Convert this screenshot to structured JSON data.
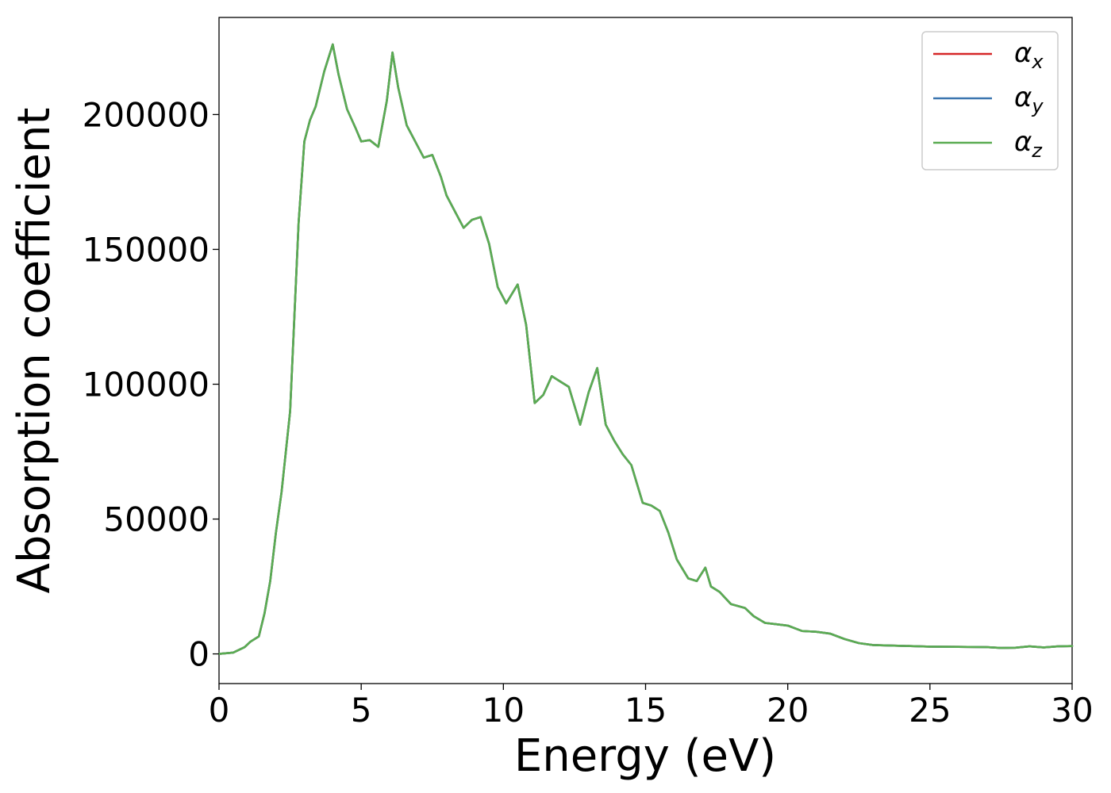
{
  "chart_data": {
    "type": "line",
    "xlabel": "Energy (eV)",
    "ylabel": "Absorption coefficient",
    "xlim": [
      0,
      30
    ],
    "ylim": [
      -11000,
      236000
    ],
    "xticks": [
      "0",
      "5",
      "10",
      "15",
      "20",
      "25",
      "30"
    ],
    "yticks": [
      "0",
      "50000",
      "100000",
      "150000",
      "200000"
    ],
    "grid": false,
    "legend_position": "top-right",
    "legend_entries": [
      {
        "symbol": "α",
        "subscript": "x",
        "color": "#d62728"
      },
      {
        "symbol": "α",
        "subscript": "y",
        "color": "#3b75af"
      },
      {
        "symbol": "α",
        "subscript": "z",
        "color": "#5aac52"
      }
    ],
    "x": [
      0,
      0.5,
      0.9,
      1.1,
      1.4,
      1.6,
      1.8,
      2.0,
      2.2,
      2.5,
      2.8,
      3.0,
      3.2,
      3.4,
      3.7,
      4.0,
      4.2,
      4.5,
      4.8,
      5.0,
      5.3,
      5.6,
      5.9,
      6.1,
      6.3,
      6.6,
      7.0,
      7.2,
      7.5,
      7.8,
      8.0,
      8.3,
      8.6,
      8.9,
      9.2,
      9.5,
      9.8,
      10.1,
      10.5,
      10.8,
      11.1,
      11.4,
      11.7,
      12.0,
      12.3,
      12.7,
      13.0,
      13.3,
      13.6,
      13.9,
      14.2,
      14.5,
      14.9,
      15.2,
      15.5,
      15.8,
      16.1,
      16.5,
      16.8,
      17.1,
      17.3,
      17.6,
      18.0,
      18.5,
      18.8,
      19.2,
      19.6,
      20.0,
      20.5,
      21.0,
      21.5,
      22.0,
      22.5,
      23.0,
      24.0,
      25.0,
      26.0,
      27.0,
      27.5,
      28.0,
      28.5,
      29.0,
      29.5,
      30.0
    ],
    "series": [
      {
        "name": "αx",
        "color": "#d62728",
        "values": [
          0,
          500,
          2500,
          4500,
          6500,
          15000,
          27000,
          45000,
          60000,
          90000,
          160000,
          190000,
          198000,
          203000,
          216000,
          226000,
          215000,
          202000,
          195000,
          190000,
          190500,
          188000,
          205000,
          223000,
          210000,
          196000,
          188000,
          184000,
          185000,
          177000,
          170000,
          164000,
          158000,
          161000,
          162000,
          152000,
          136000,
          130000,
          137000,
          122000,
          93000,
          96000,
          103000,
          101000,
          99000,
          85000,
          97000,
          106000,
          85000,
          79000,
          74000,
          70000,
          56000,
          55000,
          53000,
          45000,
          35000,
          28000,
          27000,
          32000,
          25000,
          23000,
          18500,
          17000,
          14000,
          11500,
          11000,
          10500,
          8500,
          8200,
          7500,
          5500,
          4000,
          3300,
          3000,
          2700,
          2600,
          2500,
          2200,
          2300,
          2800,
          2400,
          2800,
          2900
        ]
      },
      {
        "name": "αy",
        "color": "#3b75af",
        "values": [
          0,
          500,
          2500,
          4500,
          6500,
          15000,
          27000,
          45000,
          60000,
          90000,
          160000,
          190000,
          198000,
          203000,
          216000,
          226000,
          215000,
          202000,
          195000,
          190000,
          190500,
          188000,
          205000,
          223000,
          210000,
          196000,
          188000,
          184000,
          185000,
          177000,
          170000,
          164000,
          158000,
          161000,
          162000,
          152000,
          136000,
          130000,
          137000,
          122000,
          93000,
          96000,
          103000,
          101000,
          99000,
          85000,
          97000,
          106000,
          85000,
          79000,
          74000,
          70000,
          56000,
          55000,
          53000,
          45000,
          35000,
          28000,
          27000,
          32000,
          25000,
          23000,
          18500,
          17000,
          14000,
          11500,
          11000,
          10500,
          8500,
          8200,
          7500,
          5500,
          4000,
          3300,
          3000,
          2700,
          2600,
          2500,
          2200,
          2300,
          2800,
          2400,
          2800,
          2900
        ]
      },
      {
        "name": "αz",
        "color": "#5aac52",
        "values": [
          0,
          500,
          2500,
          4500,
          6500,
          15000,
          27000,
          45000,
          60000,
          90000,
          160000,
          190000,
          198000,
          203000,
          216000,
          226000,
          215000,
          202000,
          195000,
          190000,
          190500,
          188000,
          205000,
          223000,
          210000,
          196000,
          188000,
          184000,
          185000,
          177000,
          170000,
          164000,
          158000,
          161000,
          162000,
          152000,
          136000,
          130000,
          137000,
          122000,
          93000,
          96000,
          103000,
          101000,
          99000,
          85000,
          97000,
          106000,
          85000,
          79000,
          74000,
          70000,
          56000,
          55000,
          53000,
          45000,
          35000,
          28000,
          27000,
          32000,
          25000,
          23000,
          18500,
          17000,
          14000,
          11500,
          11000,
          10500,
          8500,
          8200,
          7500,
          5500,
          4000,
          3300,
          3000,
          2700,
          2600,
          2500,
          2200,
          2300,
          2800,
          2400,
          2800,
          2900
        ]
      }
    ]
  }
}
